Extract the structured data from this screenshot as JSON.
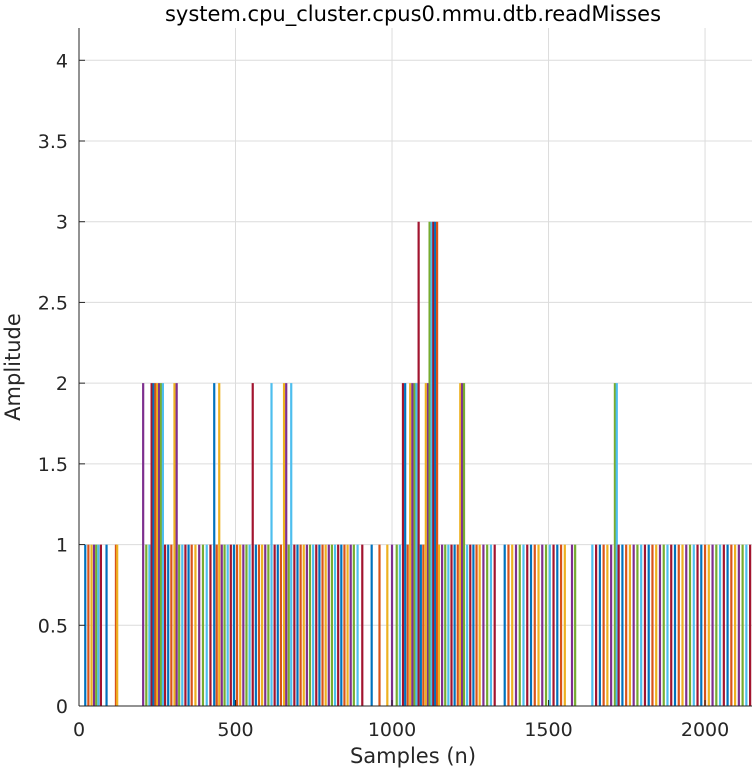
{
  "chart_data": {
    "type": "line",
    "title": "system.cpu_cluster.cpus0.mmu.dtb.readMisses",
    "xlabel": "Samples (n)",
    "ylabel": "Amplitude",
    "xlim": [
      0,
      2150
    ],
    "ylim": [
      0,
      4.2
    ],
    "xticks": [
      0,
      500,
      1000,
      1500,
      2000
    ],
    "xtick_labels": [
      "0",
      "500",
      "1000",
      "1500",
      "2000"
    ],
    "yticks": [
      0,
      0.5,
      1,
      1.5,
      2,
      2.5,
      3,
      3.5,
      4
    ],
    "ytick_labels": [
      "0",
      "0.5",
      "1",
      "1.5",
      "2",
      "2.5",
      "3",
      "3.5",
      "4"
    ],
    "grid": true,
    "legend": "none",
    "colors": [
      "#0072BD",
      "#D95319",
      "#EDB120",
      "#7E2F8E",
      "#77AC30",
      "#4DBEEE",
      "#A2142F"
    ],
    "spikes": [
      {
        "x": 20,
        "y": 1
      },
      {
        "x": 30,
        "y": 1
      },
      {
        "x": 40,
        "y": 1
      },
      {
        "x": 48,
        "y": 1
      },
      {
        "x": 55,
        "y": 1
      },
      {
        "x": 62,
        "y": 1
      },
      {
        "x": 70,
        "y": 1
      },
      {
        "x": 88,
        "y": 1
      },
      {
        "x": 118,
        "y": 1
      },
      {
        "x": 122,
        "y": 1
      },
      {
        "x": 205,
        "y": 2
      },
      {
        "x": 215,
        "y": 1
      },
      {
        "x": 225,
        "y": 1
      },
      {
        "x": 232,
        "y": 2
      },
      {
        "x": 238,
        "y": 2
      },
      {
        "x": 244,
        "y": 2
      },
      {
        "x": 250,
        "y": 2
      },
      {
        "x": 256,
        "y": 2
      },
      {
        "x": 262,
        "y": 2
      },
      {
        "x": 268,
        "y": 2
      },
      {
        "x": 275,
        "y": 1
      },
      {
        "x": 285,
        "y": 1
      },
      {
        "x": 295,
        "y": 1
      },
      {
        "x": 305,
        "y": 2
      },
      {
        "x": 312,
        "y": 2
      },
      {
        "x": 320,
        "y": 1
      },
      {
        "x": 330,
        "y": 1
      },
      {
        "x": 340,
        "y": 1
      },
      {
        "x": 350,
        "y": 1
      },
      {
        "x": 360,
        "y": 1
      },
      {
        "x": 372,
        "y": 1
      },
      {
        "x": 384,
        "y": 1
      },
      {
        "x": 396,
        "y": 1
      },
      {
        "x": 408,
        "y": 1
      },
      {
        "x": 420,
        "y": 1
      },
      {
        "x": 432,
        "y": 2
      },
      {
        "x": 440,
        "y": 1
      },
      {
        "x": 448,
        "y": 2
      },
      {
        "x": 456,
        "y": 1
      },
      {
        "x": 465,
        "y": 1
      },
      {
        "x": 475,
        "y": 1
      },
      {
        "x": 485,
        "y": 1
      },
      {
        "x": 495,
        "y": 1
      },
      {
        "x": 505,
        "y": 1
      },
      {
        "x": 515,
        "y": 1
      },
      {
        "x": 525,
        "y": 1
      },
      {
        "x": 535,
        "y": 1
      },
      {
        "x": 545,
        "y": 1
      },
      {
        "x": 555,
        "y": 2
      },
      {
        "x": 565,
        "y": 1
      },
      {
        "x": 575,
        "y": 1
      },
      {
        "x": 585,
        "y": 1
      },
      {
        "x": 595,
        "y": 1
      },
      {
        "x": 605,
        "y": 1
      },
      {
        "x": 615,
        "y": 2
      },
      {
        "x": 625,
        "y": 1
      },
      {
        "x": 635,
        "y": 1
      },
      {
        "x": 645,
        "y": 1
      },
      {
        "x": 655,
        "y": 2
      },
      {
        "x": 662,
        "y": 2
      },
      {
        "x": 670,
        "y": 1
      },
      {
        "x": 678,
        "y": 2
      },
      {
        "x": 688,
        "y": 1
      },
      {
        "x": 698,
        "y": 1
      },
      {
        "x": 708,
        "y": 1
      },
      {
        "x": 718,
        "y": 1
      },
      {
        "x": 728,
        "y": 1
      },
      {
        "x": 738,
        "y": 1
      },
      {
        "x": 748,
        "y": 1
      },
      {
        "x": 758,
        "y": 1
      },
      {
        "x": 768,
        "y": 1
      },
      {
        "x": 778,
        "y": 1
      },
      {
        "x": 788,
        "y": 1
      },
      {
        "x": 798,
        "y": 1
      },
      {
        "x": 808,
        "y": 1
      },
      {
        "x": 818,
        "y": 1
      },
      {
        "x": 828,
        "y": 1
      },
      {
        "x": 838,
        "y": 1
      },
      {
        "x": 848,
        "y": 1
      },
      {
        "x": 858,
        "y": 1
      },
      {
        "x": 868,
        "y": 1
      },
      {
        "x": 878,
        "y": 1
      },
      {
        "x": 890,
        "y": 1
      },
      {
        "x": 905,
        "y": 1
      },
      {
        "x": 935,
        "y": 1
      },
      {
        "x": 960,
        "y": 1
      },
      {
        "x": 985,
        "y": 1
      },
      {
        "x": 1000,
        "y": 1
      },
      {
        "x": 1015,
        "y": 1
      },
      {
        "x": 1025,
        "y": 1
      },
      {
        "x": 1035,
        "y": 2
      },
      {
        "x": 1042,
        "y": 2
      },
      {
        "x": 1050,
        "y": 1
      },
      {
        "x": 1058,
        "y": 2
      },
      {
        "x": 1065,
        "y": 2
      },
      {
        "x": 1072,
        "y": 2
      },
      {
        "x": 1078,
        "y": 2
      },
      {
        "x": 1085,
        "y": 3
      },
      {
        "x": 1092,
        "y": 1
      },
      {
        "x": 1100,
        "y": 1
      },
      {
        "x": 1108,
        "y": 2
      },
      {
        "x": 1115,
        "y": 2
      },
      {
        "x": 1120,
        "y": 3
      },
      {
        "x": 1126,
        "y": 3
      },
      {
        "x": 1132,
        "y": 3
      },
      {
        "x": 1138,
        "y": 3
      },
      {
        "x": 1144,
        "y": 3
      },
      {
        "x": 1150,
        "y": 1
      },
      {
        "x": 1160,
        "y": 1
      },
      {
        "x": 1170,
        "y": 1
      },
      {
        "x": 1180,
        "y": 1
      },
      {
        "x": 1190,
        "y": 1
      },
      {
        "x": 1200,
        "y": 1
      },
      {
        "x": 1210,
        "y": 1
      },
      {
        "x": 1218,
        "y": 2
      },
      {
        "x": 1224,
        "y": 2
      },
      {
        "x": 1230,
        "y": 2
      },
      {
        "x": 1240,
        "y": 1
      },
      {
        "x": 1250,
        "y": 1
      },
      {
        "x": 1260,
        "y": 1
      },
      {
        "x": 1270,
        "y": 1
      },
      {
        "x": 1280,
        "y": 1
      },
      {
        "x": 1292,
        "y": 1
      },
      {
        "x": 1304,
        "y": 1
      },
      {
        "x": 1316,
        "y": 1
      },
      {
        "x": 1328,
        "y": 1
      },
      {
        "x": 1360,
        "y": 1
      },
      {
        "x": 1372,
        "y": 1
      },
      {
        "x": 1384,
        "y": 1
      },
      {
        "x": 1396,
        "y": 1
      },
      {
        "x": 1408,
        "y": 1
      },
      {
        "x": 1420,
        "y": 1
      },
      {
        "x": 1432,
        "y": 1
      },
      {
        "x": 1444,
        "y": 1
      },
      {
        "x": 1456,
        "y": 1
      },
      {
        "x": 1468,
        "y": 1
      },
      {
        "x": 1480,
        "y": 1
      },
      {
        "x": 1492,
        "y": 1
      },
      {
        "x": 1504,
        "y": 1
      },
      {
        "x": 1516,
        "y": 1
      },
      {
        "x": 1528,
        "y": 1
      },
      {
        "x": 1540,
        "y": 1
      },
      {
        "x": 1552,
        "y": 1
      },
      {
        "x": 1575,
        "y": 1
      },
      {
        "x": 1585,
        "y": 1
      },
      {
        "x": 1640,
        "y": 1
      },
      {
        "x": 1652,
        "y": 1
      },
      {
        "x": 1664,
        "y": 1
      },
      {
        "x": 1676,
        "y": 1
      },
      {
        "x": 1688,
        "y": 1
      },
      {
        "x": 1700,
        "y": 1
      },
      {
        "x": 1712,
        "y": 2
      },
      {
        "x": 1718,
        "y": 2
      },
      {
        "x": 1724,
        "y": 1
      },
      {
        "x": 1736,
        "y": 1
      },
      {
        "x": 1748,
        "y": 1
      },
      {
        "x": 1760,
        "y": 1
      },
      {
        "x": 1772,
        "y": 1
      },
      {
        "x": 1784,
        "y": 1
      },
      {
        "x": 1796,
        "y": 1
      },
      {
        "x": 1808,
        "y": 1
      },
      {
        "x": 1820,
        "y": 1
      },
      {
        "x": 1832,
        "y": 1
      },
      {
        "x": 1844,
        "y": 1
      },
      {
        "x": 1856,
        "y": 1
      },
      {
        "x": 1868,
        "y": 1
      },
      {
        "x": 1880,
        "y": 1
      },
      {
        "x": 1892,
        "y": 1
      },
      {
        "x": 1904,
        "y": 1
      },
      {
        "x": 1916,
        "y": 1
      },
      {
        "x": 1928,
        "y": 1
      },
      {
        "x": 1940,
        "y": 1
      },
      {
        "x": 1952,
        "y": 1
      },
      {
        "x": 1964,
        "y": 1
      },
      {
        "x": 1976,
        "y": 1
      },
      {
        "x": 1988,
        "y": 1
      },
      {
        "x": 2000,
        "y": 1
      },
      {
        "x": 2012,
        "y": 1
      },
      {
        "x": 2024,
        "y": 1
      },
      {
        "x": 2036,
        "y": 1
      },
      {
        "x": 2048,
        "y": 1
      },
      {
        "x": 2060,
        "y": 1
      },
      {
        "x": 2072,
        "y": 1
      },
      {
        "x": 2084,
        "y": 1
      },
      {
        "x": 2096,
        "y": 1
      },
      {
        "x": 2108,
        "y": 1
      },
      {
        "x": 2120,
        "y": 1
      },
      {
        "x": 2132,
        "y": 1
      },
      {
        "x": 2144,
        "y": 1
      }
    ]
  }
}
